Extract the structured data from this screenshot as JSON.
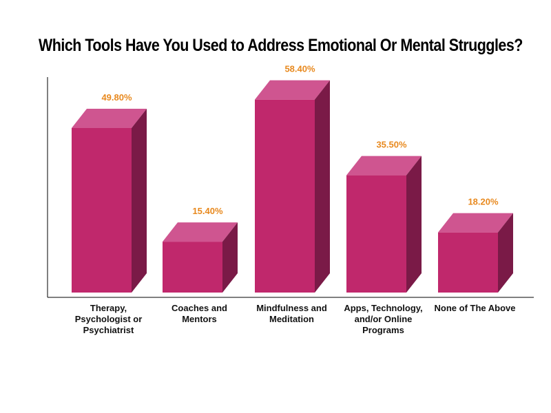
{
  "chart_data": {
    "type": "bar",
    "title": "Which Tools Have You Used to Address Emotional Or Mental Struggles?",
    "categories": [
      "Therapy, Psychologist or Psychiatrist",
      "Coaches and Mentors",
      "Mindfulness and Meditation",
      "Apps, Technology, and/or Online Programs",
      "None of The Above"
    ],
    "category_lines": [
      [
        "Therapy,",
        "Psychologist or",
        "Psychiatrist"
      ],
      [
        "Coaches and",
        "Mentors"
      ],
      [
        "Mindfulness and",
        "Meditation"
      ],
      [
        "Apps, Technology,",
        "and/or Online",
        "Programs"
      ],
      [
        "None of The Above"
      ]
    ],
    "values": [
      49.8,
      15.4,
      58.4,
      35.5,
      18.2
    ],
    "value_labels": [
      "49.80%",
      "15.40%",
      "58.40%",
      "35.50%",
      "18.20%"
    ],
    "ylim": [
      0,
      60
    ],
    "grid": false,
    "legend": "none",
    "colors": {
      "front": "#c0286c",
      "top": "#cf5590",
      "side": "#7a1a47",
      "label": "#e8891e"
    }
  }
}
